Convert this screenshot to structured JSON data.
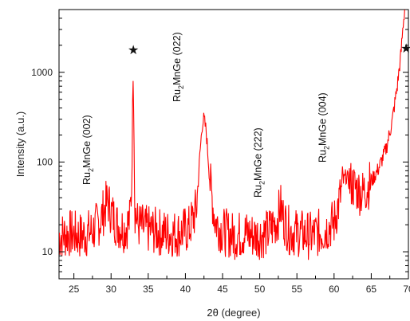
{
  "chart_data": {
    "type": "line",
    "title": "",
    "xlabel": "2θ (degree)",
    "ylabel": "Intensity (a.u.)",
    "xlim": [
      23,
      70
    ],
    "ylim": [
      5,
      5000
    ],
    "yscale": "log",
    "grid": false,
    "legend": "none",
    "series_color": "#ff0000",
    "x_ticks": [
      "25",
      "30",
      "35",
      "40",
      "45",
      "50",
      "55",
      "60",
      "65",
      "70"
    ],
    "x_tick_values": [
      25,
      30,
      35,
      40,
      45,
      50,
      55,
      60,
      65,
      70
    ],
    "y_ticks": [
      "10",
      "100",
      "1000"
    ],
    "y_tick_values": [
      10,
      100,
      1000
    ],
    "series": [
      {
        "x": [
          23.0,
          24.5,
          26.0,
          27.5,
          28.5,
          29.3,
          29.6,
          30.0,
          30.8,
          31.8,
          32.5,
          32.8,
          32.95,
          33.05,
          33.2,
          33.6,
          34.5,
          36.0,
          37.5,
          39.0,
          40.5,
          41.5,
          42.0,
          42.3,
          42.5,
          42.8,
          43.3,
          44.0,
          45.0,
          46.5,
          48.0,
          49.5,
          51.0,
          52.3,
          52.8,
          53.3,
          54.0,
          55.5,
          57.0,
          58.5,
          60.0,
          60.8,
          61.3,
          61.6,
          62.0,
          62.8,
          63.8,
          65.0,
          66.0,
          67.0,
          67.8,
          68.5,
          69.0,
          69.3,
          69.5
        ],
        "y": [
          15,
          16,
          15,
          17,
          22,
          33,
          36,
          28,
          20,
          18,
          22,
          60,
          1100,
          400,
          30,
          20,
          18,
          17,
          16,
          16,
          18,
          30,
          140,
          280,
          300,
          220,
          60,
          22,
          17,
          15,
          16,
          15,
          16,
          22,
          32,
          22,
          17,
          16,
          15,
          17,
          21,
          40,
          62,
          70,
          60,
          52,
          45,
          60,
          85,
          140,
          280,
          700,
          1600,
          3500,
          5000
        ]
      }
    ],
    "annotations": [
      {
        "text": "Ru",
        "sub": "2",
        "rest": "MnGe (002)",
        "x": 30.2
      },
      {
        "text": "Ru",
        "sub": "2",
        "rest": "MnGe (022)",
        "x": 42.3
      },
      {
        "text": "Ru",
        "sub": "2",
        "rest": "MnGe (222)",
        "x": 53.2
      },
      {
        "text": "Ru",
        "sub": "2",
        "rest": "MnGe (004)",
        "x": 61.9
      }
    ],
    "markers": [
      {
        "symbol": "★",
        "x": 33.0
      },
      {
        "symbol": "★",
        "x": 69.7
      }
    ]
  }
}
